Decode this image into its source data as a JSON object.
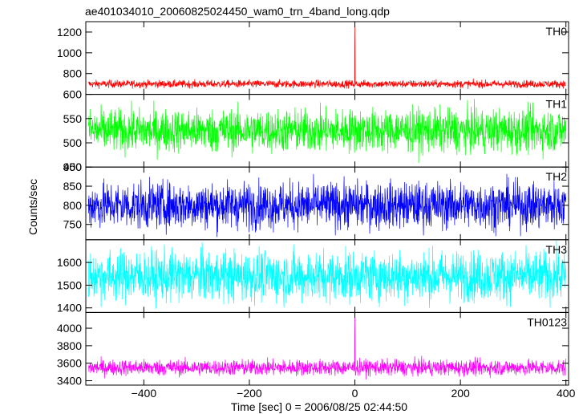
{
  "chart_data": {
    "type": "line",
    "title": "ae401034010_20060825024450_wam0_trn_4band_long.qdp",
    "xlabel": "Time [sec] 0 = 2006/08/25 02:44:50",
    "ylabel": "Counts/sec",
    "xlim": [
      -510,
      405
    ],
    "x_ticks": [
      -400,
      -200,
      0,
      200,
      400
    ],
    "x_tick_labels": [
      "−400",
      "−200",
      "0",
      "200",
      "400"
    ],
    "grid": false,
    "panels": [
      {
        "label": "TH0",
        "color": "#ff0000",
        "ylim": [
          600,
          1300
        ],
        "y_ticks": [
          600,
          800,
          1000,
          1200
        ],
        "y_tick_labels": [
          "600",
          "800",
          "1000",
          "1200"
        ],
        "mean": 700,
        "noise": 18,
        "spike_x": 0,
        "spike_y": 1290
      },
      {
        "label": "TH1",
        "color": "#00ff00",
        "ylim": [
          450,
          600
        ],
        "y_ticks": [
          450,
          500,
          550
        ],
        "y_tick_labels": [
          "450",
          "500",
          "550"
        ],
        "mean": 525,
        "noise": 22
      },
      {
        "label": "TH2",
        "color": "#0000ff",
        "ylim": [
          710,
          900
        ],
        "y_ticks": [
          750,
          800,
          850,
          900
        ],
        "y_tick_labels": [
          "750",
          "800",
          "850",
          "900"
        ],
        "mean": 800,
        "noise": 30
      },
      {
        "label": "TH3",
        "color": "#00ffff",
        "ylim": [
          1380,
          1700
        ],
        "y_ticks": [
          1400,
          1500,
          1600
        ],
        "y_tick_labels": [
          "1400",
          "1500",
          "1600"
        ],
        "mean": 1540,
        "noise": 55
      },
      {
        "label": "TH0123",
        "color": "#ff00ff",
        "ylim": [
          3350,
          4180
        ],
        "y_ticks": [
          3400,
          3600,
          3800,
          4000
        ],
        "y_tick_labels": [
          "3400",
          "3600",
          "3800",
          "4000"
        ],
        "mean": 3550,
        "noise": 45,
        "spike_x": 0,
        "spike_y": 4180
      }
    ]
  }
}
